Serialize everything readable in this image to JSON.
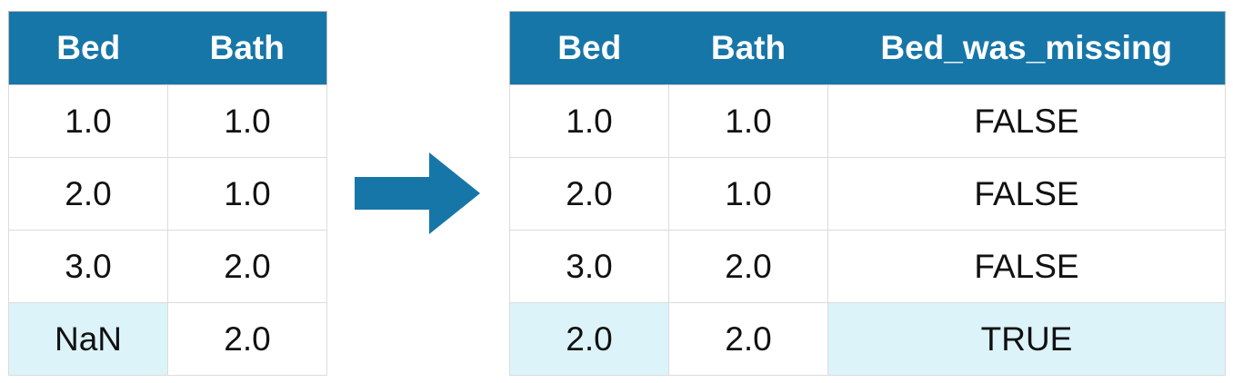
{
  "before_table": {
    "columns": [
      "Bed",
      "Bath"
    ],
    "rows": [
      [
        "1.0",
        "1.0"
      ],
      [
        "2.0",
        "1.0"
      ],
      [
        "3.0",
        "2.0"
      ],
      [
        "NaN",
        "2.0"
      ]
    ]
  },
  "after_table": {
    "columns": [
      "Bed",
      "Bath",
      "Bed_was_missing"
    ],
    "rows": [
      [
        "1.0",
        "1.0",
        "FALSE"
      ],
      [
        "2.0",
        "1.0",
        "FALSE"
      ],
      [
        "3.0",
        "2.0",
        "FALSE"
      ],
      [
        "2.0",
        "2.0",
        "TRUE"
      ]
    ]
  },
  "arrow_icon": "right-arrow-icon",
  "colors": {
    "header": "#1776a8",
    "header_text": "#ffffff",
    "highlight": "#dcf3fa",
    "arrow": "#1776a8"
  }
}
